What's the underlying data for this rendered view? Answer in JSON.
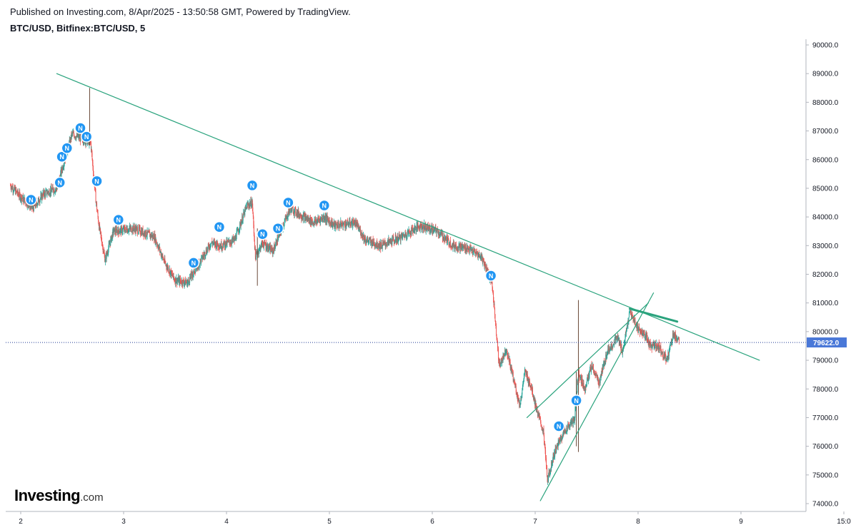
{
  "header": {
    "published": "Published on Investing.com, 8/Apr/2025 - 13:50:58 GMT, Powered by TradingView.",
    "symbol": "BTC/USD, Bitfinex:BTC/USD, 5"
  },
  "logo": {
    "main": "Investing",
    "suffix": ".com"
  },
  "colors": {
    "up": "#26a69a",
    "down": "#ef5350",
    "trendline": "#2aa37d",
    "price_label": "#4a78d8",
    "news": "#2196f3"
  },
  "chart_data": {
    "type": "candlestick",
    "y_ticks": [
      "90000.0",
      "89000.0",
      "88000.0",
      "87000.0",
      "86000.0",
      "85000.0",
      "84000.0",
      "83000.0",
      "82000.0",
      "81000.0",
      "80000.0",
      "79000.0",
      "78000.0",
      "77000.0",
      "76000.0",
      "75000.0",
      "74000.0"
    ],
    "x_ticks": [
      "2",
      "3",
      "4",
      "5",
      "6",
      "7",
      "8",
      "9",
      "15:0"
    ],
    "last_price": "79622.0",
    "news_marker_label": "N",
    "price_path": [
      {
        "x": 1.9,
        "y": 85100
      },
      {
        "x": 2.0,
        "y": 84700
      },
      {
        "x": 2.12,
        "y": 84300
      },
      {
        "x": 2.22,
        "y": 84800
      },
      {
        "x": 2.35,
        "y": 85000
      },
      {
        "x": 2.42,
        "y": 85900
      },
      {
        "x": 2.5,
        "y": 86900
      },
      {
        "x": 2.6,
        "y": 86700
      },
      {
        "x": 2.68,
        "y": 86600
      },
      {
        "x": 2.73,
        "y": 84600
      },
      {
        "x": 2.76,
        "y": 83700
      },
      {
        "x": 2.82,
        "y": 82500
      },
      {
        "x": 2.9,
        "y": 83500
      },
      {
        "x": 3.1,
        "y": 83600
      },
      {
        "x": 3.3,
        "y": 83300
      },
      {
        "x": 3.4,
        "y": 82400
      },
      {
        "x": 3.5,
        "y": 81800
      },
      {
        "x": 3.62,
        "y": 81700
      },
      {
        "x": 3.72,
        "y": 82300
      },
      {
        "x": 3.85,
        "y": 83100
      },
      {
        "x": 3.95,
        "y": 83000
      },
      {
        "x": 4.08,
        "y": 83200
      },
      {
        "x": 4.2,
        "y": 84400
      },
      {
        "x": 4.25,
        "y": 84500
      },
      {
        "x": 4.28,
        "y": 82600
      },
      {
        "x": 4.35,
        "y": 83100
      },
      {
        "x": 4.45,
        "y": 82800
      },
      {
        "x": 4.55,
        "y": 83700
      },
      {
        "x": 4.62,
        "y": 84300
      },
      {
        "x": 4.75,
        "y": 84000
      },
      {
        "x": 4.85,
        "y": 83800
      },
      {
        "x": 4.95,
        "y": 84000
      },
      {
        "x": 5.05,
        "y": 83700
      },
      {
        "x": 5.25,
        "y": 83800
      },
      {
        "x": 5.35,
        "y": 83200
      },
      {
        "x": 5.5,
        "y": 83000
      },
      {
        "x": 5.7,
        "y": 83300
      },
      {
        "x": 5.88,
        "y": 83700
      },
      {
        "x": 6.05,
        "y": 83500
      },
      {
        "x": 6.2,
        "y": 83000
      },
      {
        "x": 6.35,
        "y": 82900
      },
      {
        "x": 6.48,
        "y": 82600
      },
      {
        "x": 6.58,
        "y": 81700
      },
      {
        "x": 6.62,
        "y": 80100
      },
      {
        "x": 6.65,
        "y": 78800
      },
      {
        "x": 6.72,
        "y": 79400
      },
      {
        "x": 6.8,
        "y": 78200
      },
      {
        "x": 6.85,
        "y": 77400
      },
      {
        "x": 6.9,
        "y": 78600
      },
      {
        "x": 6.96,
        "y": 78100
      },
      {
        "x": 7.02,
        "y": 77200
      },
      {
        "x": 7.08,
        "y": 76500
      },
      {
        "x": 7.12,
        "y": 74800
      },
      {
        "x": 7.18,
        "y": 75700
      },
      {
        "x": 7.25,
        "y": 76300
      },
      {
        "x": 7.32,
        "y": 76700
      },
      {
        "x": 7.38,
        "y": 76900
      },
      {
        "x": 7.42,
        "y": 78600
      },
      {
        "x": 7.48,
        "y": 78000
      },
      {
        "x": 7.55,
        "y": 78800
      },
      {
        "x": 7.62,
        "y": 78200
      },
      {
        "x": 7.7,
        "y": 79300
      },
      {
        "x": 7.8,
        "y": 79800
      },
      {
        "x": 7.85,
        "y": 79300
      },
      {
        "x": 7.92,
        "y": 80700
      },
      {
        "x": 8.0,
        "y": 80100
      },
      {
        "x": 8.06,
        "y": 79900
      },
      {
        "x": 8.12,
        "y": 79500
      },
      {
        "x": 8.2,
        "y": 79500
      },
      {
        "x": 8.28,
        "y": 79000
      },
      {
        "x": 8.34,
        "y": 79900
      },
      {
        "x": 8.4,
        "y": 79700
      }
    ],
    "spikes": [
      {
        "x": 2.67,
        "low": 86500,
        "high": 88500
      },
      {
        "x": 7.42,
        "low": 75800,
        "high": 81100
      },
      {
        "x": 7.4,
        "low": 76000,
        "high": 78600
      },
      {
        "x": 4.3,
        "low": 81600,
        "high": 83600
      }
    ],
    "news_markers": [
      {
        "x": 2.1,
        "y": 84600
      },
      {
        "x": 2.38,
        "y": 85200
      },
      {
        "x": 2.4,
        "y": 86100
      },
      {
        "x": 2.45,
        "y": 86400
      },
      {
        "x": 2.58,
        "y": 87100
      },
      {
        "x": 2.64,
        "y": 86800
      },
      {
        "x": 2.74,
        "y": 85250
      },
      {
        "x": 2.95,
        "y": 83900
      },
      {
        "x": 3.68,
        "y": 82400
      },
      {
        "x": 3.93,
        "y": 83650
      },
      {
        "x": 4.25,
        "y": 85100
      },
      {
        "x": 4.35,
        "y": 83400
      },
      {
        "x": 4.5,
        "y": 83600
      },
      {
        "x": 4.6,
        "y": 84500
      },
      {
        "x": 4.95,
        "y": 84400
      },
      {
        "x": 6.57,
        "y": 81950
      },
      {
        "x": 7.23,
        "y": 76700
      },
      {
        "x": 7.4,
        "y": 77600
      }
    ],
    "lines": [
      {
        "name": "downtrend",
        "x1": 2.35,
        "y1": 89000,
        "x2": 9.18,
        "y2": 79000,
        "width": 1.2
      },
      {
        "name": "wedge-lower",
        "x1": 7.05,
        "y1": 74100,
        "x2": 8.15,
        "y2": 81350,
        "width": 1.2
      },
      {
        "name": "wedge-upper",
        "x1": 6.92,
        "y1": 77000,
        "x2": 8.1,
        "y2": 81000,
        "width": 1.2
      },
      {
        "name": "flag-top",
        "x1": 7.92,
        "y1": 80800,
        "x2": 8.38,
        "y2": 80350,
        "width": 3
      }
    ]
  }
}
